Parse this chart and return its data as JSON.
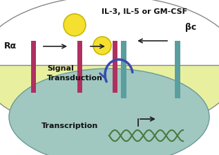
{
  "bg_top": "#ffffff",
  "bg_cell_color_top": "#e8f0a0",
  "bg_cell_color_bottom": "#c8e090",
  "bg_nucleus_color": "#a0c8c0",
  "receptor_alpha_color": "#b03060",
  "receptor_beta_color": "#5a9ea0",
  "cytokine_color": "#f5e030",
  "cytokine_outline": "#c8b800",
  "arrow_color": "#222222",
  "signal_arrow_color": "#3a4ab0",
  "dna_color": "#4a7a40",
  "title_text": "IL-3, IL-5 or GM-CSF",
  "label_ra": "Rα",
  "label_bc": "βc",
  "label_signal": "Signal\nTransduction",
  "label_transcription": "Transcription",
  "text_color": "#111111",
  "cell_edge_color": "#888888",
  "nucleus_edge_color": "#6a9a98",
  "figw": 3.17,
  "figh": 2.24,
  "dpi": 100
}
